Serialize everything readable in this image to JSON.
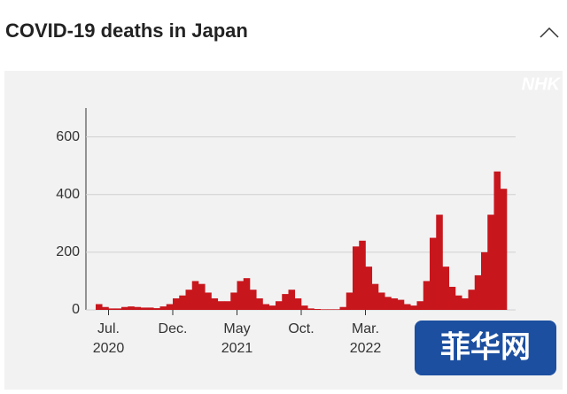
{
  "header": {
    "title": "COVID-19 deaths in Japan"
  },
  "chart_data": {
    "type": "bar",
    "watermark": "NHK",
    "overlay_logo": "菲华网",
    "categories": [
      null,
      null,
      "Jul.",
      null,
      null,
      null,
      null,
      null,
      null,
      null,
      null,
      null,
      "Dec.",
      null,
      null,
      null,
      null,
      null,
      null,
      null,
      null,
      null,
      "May",
      null,
      null,
      null,
      null,
      null,
      null,
      null,
      null,
      null,
      "Oct.",
      null,
      null,
      null,
      null,
      null,
      null,
      null,
      null,
      null,
      "Mar.",
      null,
      null,
      null,
      null,
      null,
      null,
      null,
      null,
      null,
      null,
      null,
      null,
      null,
      null,
      null,
      null,
      null,
      null,
      null,
      null,
      null
    ],
    "years": [
      null,
      null,
      "2020",
      null,
      null,
      null,
      null,
      null,
      null,
      null,
      null,
      null,
      null,
      null,
      null,
      null,
      null,
      null,
      null,
      null,
      null,
      null,
      "2021",
      null,
      null,
      null,
      null,
      null,
      null,
      null,
      null,
      null,
      null,
      null,
      null,
      null,
      null,
      null,
      null,
      null,
      null,
      null,
      "2022",
      null,
      null,
      null,
      null,
      null,
      null,
      null,
      null,
      null,
      null,
      null,
      null,
      null,
      null,
      null,
      null,
      null,
      null,
      null,
      null,
      null
    ],
    "values": [
      20,
      10,
      5,
      5,
      10,
      12,
      10,
      8,
      8,
      6,
      12,
      20,
      40,
      50,
      70,
      100,
      90,
      60,
      40,
      30,
      30,
      60,
      100,
      110,
      70,
      40,
      20,
      15,
      30,
      55,
      70,
      40,
      15,
      5,
      3,
      2,
      2,
      2,
      10,
      60,
      220,
      240,
      150,
      90,
      60,
      45,
      40,
      35,
      20,
      15,
      30,
      100,
      250,
      330,
      150,
      80,
      50,
      40,
      70,
      120,
      200,
      330,
      480,
      420
    ],
    "color": "#c8161d",
    "ylim": [
      0,
      700
    ],
    "yticks": [
      0,
      200,
      400,
      600
    ],
    "grid": true
  }
}
